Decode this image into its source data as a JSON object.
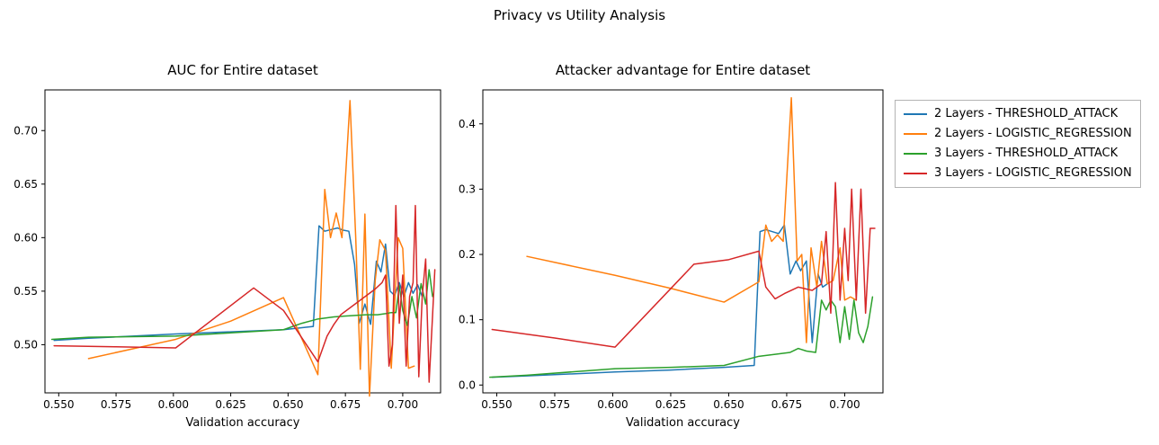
{
  "figure": {
    "title": "Privacy vs Utility Analysis"
  },
  "legend": {
    "items": [
      {
        "label": "2 Layers - THRESHOLD_ATTACK",
        "color": "#1f77b4"
      },
      {
        "label": "2 Layers - LOGISTIC_REGRESSION",
        "color": "#ff7f0e"
      },
      {
        "label": "3 Layers - THRESHOLD_ATTACK",
        "color": "#2ca02c"
      },
      {
        "label": "3 Layers - LOGISTIC_REGRESSION",
        "color": "#d62728"
      }
    ]
  },
  "chart_data": [
    {
      "type": "line",
      "title": "AUC for Entire dataset",
      "xlabel": "Validation accuracy",
      "ylabel": "",
      "xlim": [
        0.544,
        0.7165
      ],
      "ylim": [
        0.455,
        0.738
      ],
      "xticks": [
        0.55,
        0.575,
        0.6,
        0.625,
        0.65,
        0.675,
        0.7
      ],
      "xtick_labels": [
        "0.550",
        "0.575",
        "0.600",
        "0.625",
        "0.650",
        "0.675",
        "0.700"
      ],
      "yticks": [
        0.5,
        0.55,
        0.6,
        0.65,
        0.7
      ],
      "ytick_labels": [
        "0.50",
        "0.55",
        "0.60",
        "0.65",
        "0.70"
      ],
      "grid": false,
      "legend_position": "outside-right",
      "series": [
        {
          "name": "2 Layers - THRESHOLD_ATTACK",
          "color": "#1f77b4",
          "points": [
            [
              0.548,
              0.504
            ],
            [
              0.563,
              0.506
            ],
            [
              0.601,
              0.51
            ],
            [
              0.625,
              0.512
            ],
            [
              0.648,
              0.514
            ],
            [
              0.661,
              0.517
            ],
            [
              0.6635,
              0.611
            ],
            [
              0.666,
              0.606
            ],
            [
              0.6715,
              0.609
            ],
            [
              0.674,
              0.607
            ],
            [
              0.6765,
              0.606
            ],
            [
              0.679,
              0.575
            ],
            [
              0.681,
              0.52
            ],
            [
              0.6835,
              0.538
            ],
            [
              0.686,
              0.519
            ],
            [
              0.6885,
              0.578
            ],
            [
              0.6905,
              0.568
            ],
            [
              0.6925,
              0.594
            ],
            [
              0.6945,
              0.55
            ],
            [
              0.6965,
              0.546
            ],
            [
              0.6985,
              0.558
            ],
            [
              0.7005,
              0.545
            ],
            [
              0.7025,
              0.558
            ],
            [
              0.7045,
              0.548
            ],
            [
              0.7065,
              0.556
            ],
            [
              0.7085,
              0.545
            ]
          ]
        },
        {
          "name": "2 Layers - LOGISTIC_REGRESSION",
          "color": "#ff7f0e",
          "points": [
            [
              0.563,
              0.487
            ],
            [
              0.601,
              0.505
            ],
            [
              0.625,
              0.522
            ],
            [
              0.648,
              0.544
            ],
            [
              0.663,
              0.472
            ],
            [
              0.666,
              0.645
            ],
            [
              0.6685,
              0.6
            ],
            [
              0.671,
              0.623
            ],
            [
              0.6735,
              0.6
            ],
            [
              0.677,
              0.728
            ],
            [
              0.6795,
              0.6
            ],
            [
              0.6815,
              0.477
            ],
            [
              0.6835,
              0.622
            ],
            [
              0.6855,
              0.452
            ],
            [
              0.688,
              0.56
            ],
            [
              0.69,
              0.598
            ],
            [
              0.6925,
              0.588
            ],
            [
              0.695,
              0.478
            ],
            [
              0.698,
              0.6
            ],
            [
              0.7,
              0.59
            ],
            [
              0.7025,
              0.478
            ],
            [
              0.705,
              0.48
            ]
          ]
        },
        {
          "name": "3 Layers - THRESHOLD_ATTACK",
          "color": "#2ca02c",
          "points": [
            [
              0.547,
              0.505
            ],
            [
              0.563,
              0.507
            ],
            [
              0.601,
              0.508
            ],
            [
              0.625,
              0.511
            ],
            [
              0.648,
              0.514
            ],
            [
              0.656,
              0.52
            ],
            [
              0.663,
              0.524
            ],
            [
              0.67,
              0.526
            ],
            [
              0.677,
              0.527
            ],
            [
              0.684,
              0.528
            ],
            [
              0.689,
              0.528
            ],
            [
              0.6925,
              0.529
            ],
            [
              0.695,
              0.53
            ],
            [
              0.697,
              0.53
            ],
            [
              0.6985,
              0.555
            ],
            [
              0.7,
              0.532
            ],
            [
              0.702,
              0.518
            ],
            [
              0.704,
              0.545
            ],
            [
              0.706,
              0.525
            ],
            [
              0.708,
              0.557
            ],
            [
              0.71,
              0.538
            ],
            [
              0.7115,
              0.57
            ],
            [
              0.713,
              0.545
            ]
          ]
        },
        {
          "name": "3 Layers - LOGISTIC_REGRESSION",
          "color": "#d62728",
          "points": [
            [
              0.548,
              0.499
            ],
            [
              0.575,
              0.498
            ],
            [
              0.601,
              0.497
            ],
            [
              0.635,
              0.553
            ],
            [
              0.648,
              0.532
            ],
            [
              0.663,
              0.484
            ],
            [
              0.667,
              0.508
            ],
            [
              0.67,
              0.519
            ],
            [
              0.673,
              0.528
            ],
            [
              0.688,
              0.552
            ],
            [
              0.691,
              0.558
            ],
            [
              0.6925,
              0.565
            ],
            [
              0.694,
              0.48
            ],
            [
              0.6955,
              0.5
            ],
            [
              0.697,
              0.63
            ],
            [
              0.6985,
              0.52
            ],
            [
              0.7,
              0.565
            ],
            [
              0.7015,
              0.48
            ],
            [
              0.703,
              0.545
            ],
            [
              0.7045,
              0.558
            ],
            [
              0.7055,
              0.63
            ],
            [
              0.707,
              0.47
            ],
            [
              0.7085,
              0.545
            ],
            [
              0.71,
              0.58
            ],
            [
              0.7115,
              0.465
            ],
            [
              0.713,
              0.527
            ],
            [
              0.714,
              0.57
            ]
          ]
        }
      ]
    },
    {
      "type": "line",
      "title": "Attacker advantage for Entire dataset",
      "xlabel": "Validation accuracy",
      "ylabel": "",
      "xlim": [
        0.544,
        0.7165
      ],
      "ylim": [
        -0.012,
        0.452
      ],
      "xticks": [
        0.55,
        0.575,
        0.6,
        0.625,
        0.65,
        0.675,
        0.7
      ],
      "xtick_labels": [
        "0.550",
        "0.575",
        "0.600",
        "0.625",
        "0.650",
        "0.675",
        "0.700"
      ],
      "yticks": [
        0.0,
        0.1,
        0.2,
        0.3,
        0.4
      ],
      "ytick_labels": [
        "0.0",
        "0.1",
        "0.2",
        "0.3",
        "0.4"
      ],
      "grid": false,
      "legend_position": "outside-right",
      "series": [
        {
          "name": "2 Layers - THRESHOLD_ATTACK",
          "color": "#1f77b4",
          "points": [
            [
              0.548,
              0.012
            ],
            [
              0.563,
              0.014
            ],
            [
              0.601,
              0.02
            ],
            [
              0.625,
              0.023
            ],
            [
              0.648,
              0.027
            ],
            [
              0.661,
              0.03
            ],
            [
              0.6635,
              0.235
            ],
            [
              0.666,
              0.238
            ],
            [
              0.6715,
              0.232
            ],
            [
              0.674,
              0.245
            ],
            [
              0.6765,
              0.17
            ],
            [
              0.679,
              0.19
            ],
            [
              0.681,
              0.175
            ],
            [
              0.6835,
              0.19
            ],
            [
              0.686,
              0.065
            ],
            [
              0.6885,
              0.17
            ],
            [
              0.6905,
              0.15
            ],
            [
              0.6925,
              0.155
            ]
          ]
        },
        {
          "name": "2 Layers - LOGISTIC_REGRESSION",
          "color": "#ff7f0e",
          "points": [
            [
              0.563,
              0.197
            ],
            [
              0.601,
              0.168
            ],
            [
              0.625,
              0.148
            ],
            [
              0.648,
              0.127
            ],
            [
              0.663,
              0.158
            ],
            [
              0.666,
              0.245
            ],
            [
              0.6685,
              0.22
            ],
            [
              0.671,
              0.23
            ],
            [
              0.6735,
              0.22
            ],
            [
              0.677,
              0.44
            ],
            [
              0.6795,
              0.19
            ],
            [
              0.6815,
              0.2
            ],
            [
              0.6835,
              0.065
            ],
            [
              0.6855,
              0.21
            ],
            [
              0.688,
              0.15
            ],
            [
              0.69,
              0.22
            ],
            [
              0.6925,
              0.155
            ],
            [
              0.695,
              0.16
            ],
            [
              0.698,
              0.21
            ],
            [
              0.7,
              0.13
            ],
            [
              0.7025,
              0.135
            ],
            [
              0.705,
              0.13
            ]
          ]
        },
        {
          "name": "3 Layers - THRESHOLD_ATTACK",
          "color": "#2ca02c",
          "points": [
            [
              0.547,
              0.012
            ],
            [
              0.563,
              0.015
            ],
            [
              0.601,
              0.025
            ],
            [
              0.625,
              0.027
            ],
            [
              0.648,
              0.03
            ],
            [
              0.663,
              0.044
            ],
            [
              0.67,
              0.047
            ],
            [
              0.6765,
              0.05
            ],
            [
              0.68,
              0.056
            ],
            [
              0.6835,
              0.052
            ],
            [
              0.6875,
              0.05
            ],
            [
              0.69,
              0.13
            ],
            [
              0.692,
              0.115
            ],
            [
              0.694,
              0.13
            ],
            [
              0.696,
              0.12
            ],
            [
              0.698,
              0.065
            ],
            [
              0.7,
              0.12
            ],
            [
              0.702,
              0.07
            ],
            [
              0.704,
              0.13
            ],
            [
              0.706,
              0.08
            ],
            [
              0.708,
              0.065
            ],
            [
              0.71,
              0.09
            ],
            [
              0.712,
              0.135
            ]
          ]
        },
        {
          "name": "3 Layers - LOGISTIC_REGRESSION",
          "color": "#d62728",
          "points": [
            [
              0.548,
              0.085
            ],
            [
              0.575,
              0.072
            ],
            [
              0.601,
              0.058
            ],
            [
              0.635,
              0.185
            ],
            [
              0.65,
              0.192
            ],
            [
              0.663,
              0.205
            ],
            [
              0.666,
              0.15
            ],
            [
              0.67,
              0.132
            ],
            [
              0.674,
              0.14
            ],
            [
              0.68,
              0.15
            ],
            [
              0.686,
              0.145
            ],
            [
              0.69,
              0.155
            ],
            [
              0.692,
              0.235
            ],
            [
              0.694,
              0.11
            ],
            [
              0.696,
              0.31
            ],
            [
              0.698,
              0.13
            ],
            [
              0.7,
              0.24
            ],
            [
              0.7015,
              0.16
            ],
            [
              0.703,
              0.3
            ],
            [
              0.705,
              0.13
            ],
            [
              0.707,
              0.3
            ],
            [
              0.709,
              0.11
            ],
            [
              0.711,
              0.24
            ],
            [
              0.713,
              0.24
            ]
          ]
        }
      ]
    }
  ]
}
